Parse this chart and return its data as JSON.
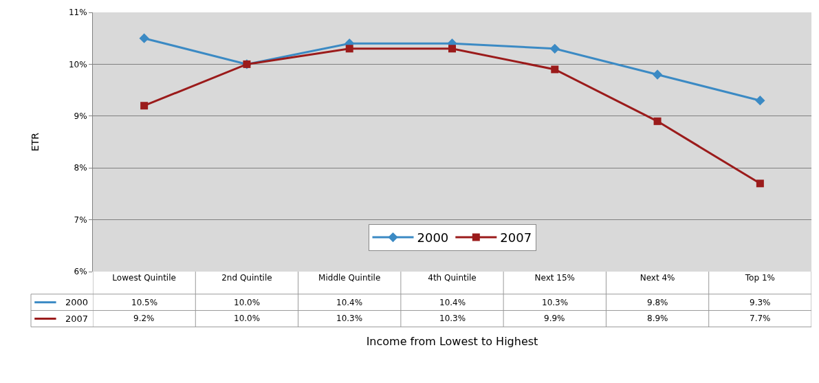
{
  "chart_data": {
    "type": "line",
    "xlabel": "Income from Lowest to Highest",
    "ylabel": "ETR",
    "categories": [
      "Lowest Quintile",
      "2nd Quintile",
      "Middle Quintile",
      "4th Quintile",
      "Next 15%",
      "Next 4%",
      "Top 1%"
    ],
    "series": [
      {
        "name": "2000",
        "color": "#3b8ac4",
        "marker": "diamond",
        "values": [
          10.5,
          10.0,
          10.4,
          10.4,
          10.3,
          9.8,
          9.3
        ],
        "value_labels": [
          "10.5%",
          "10.0%",
          "10.4%",
          "10.4%",
          "10.3%",
          "9.8%",
          "9.3%"
        ]
      },
      {
        "name": "2007",
        "color": "#9b1b1b",
        "marker": "square",
        "values": [
          9.2,
          10.0,
          10.3,
          10.3,
          9.9,
          8.9,
          7.7
        ],
        "value_labels": [
          "9.2%",
          "10.0%",
          "10.3%",
          "10.3%",
          "9.9%",
          "8.9%",
          "7.7%"
        ]
      }
    ],
    "ylim": [
      6,
      11
    ],
    "yticks": [
      {
        "value": 6,
        "label": "6%"
      },
      {
        "value": 7,
        "label": "7%"
      },
      {
        "value": 8,
        "label": "8%"
      },
      {
        "value": 9,
        "label": "9%"
      },
      {
        "value": 10,
        "label": "10%"
      },
      {
        "value": 11,
        "label": "11%"
      }
    ],
    "grid": "y",
    "legend": "bottom",
    "line_style": "solid"
  }
}
